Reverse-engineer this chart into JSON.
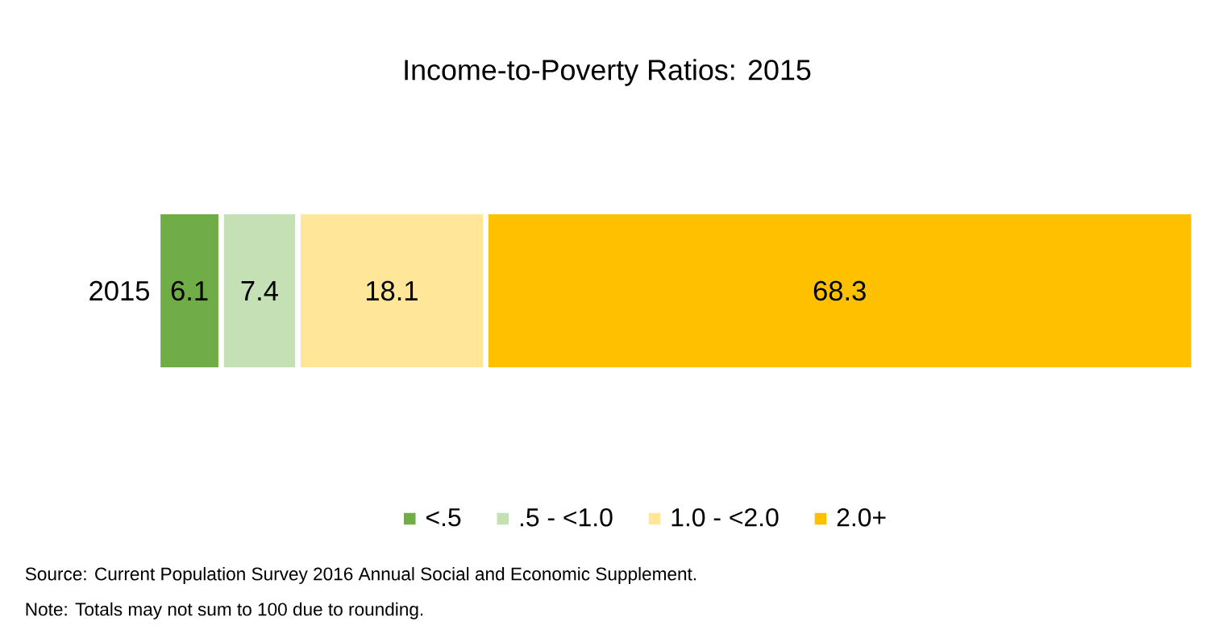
{
  "chart_data": {
    "type": "bar",
    "orientation": "horizontal",
    "stacked": true,
    "title": "Income-to-Poverty Ratios: 2015",
    "categories": [
      "2015"
    ],
    "series": [
      {
        "name": "<.5",
        "color": "#70ad47",
        "values": [
          6.1
        ]
      },
      {
        "name": ".5 - <1.0",
        "color": "#c5e0b4",
        "values": [
          7.4
        ]
      },
      {
        "name": "1.0 - <2.0",
        "color": "#ffe699",
        "values": [
          18.1
        ]
      },
      {
        "name": "2.0+",
        "color": "#ffc000",
        "values": [
          68.3
        ]
      }
    ],
    "data_labels": true,
    "legend": "bottom",
    "annotations": [
      "Source: Current Population Survey 2016 Annual Social and Economic Supplement.",
      "Note:  Totals may not sum to 100  due to rounding."
    ]
  }
}
